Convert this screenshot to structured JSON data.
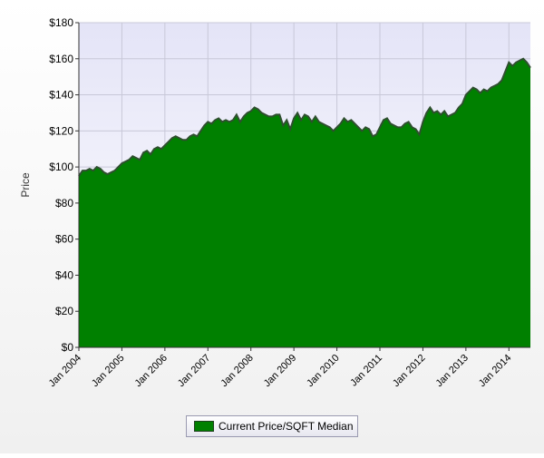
{
  "chart_data": {
    "type": "area",
    "title": "",
    "xlabel": "",
    "ylabel": "Price",
    "ylim": [
      0,
      180
    ],
    "yticks": [
      "$0",
      "$20",
      "$40",
      "$60",
      "$80",
      "$100",
      "$120",
      "$140",
      "$160",
      "$180"
    ],
    "xlim": [
      "2004-01",
      "2014-07"
    ],
    "xticks": [
      "Jan 2004",
      "Jan 2005",
      "Jan 2006",
      "Jan 2007",
      "Jan 2008",
      "Jan 2009",
      "Jan 2010",
      "Jan 2011",
      "Jan 2012",
      "Jan 2013",
      "Jan 2014"
    ],
    "grid": true,
    "legend_position": "bottom-center",
    "series": [
      {
        "name": "Current Price/SQFT Median",
        "color": "#008000",
        "x": [
          "2004-01",
          "2004-02",
          "2004-03",
          "2004-04",
          "2004-05",
          "2004-06",
          "2004-07",
          "2004-08",
          "2004-09",
          "2004-10",
          "2004-11",
          "2004-12",
          "2005-01",
          "2005-02",
          "2005-03",
          "2005-04",
          "2005-05",
          "2005-06",
          "2005-07",
          "2005-08",
          "2005-09",
          "2005-10",
          "2005-11",
          "2005-12",
          "2006-01",
          "2006-02",
          "2006-03",
          "2006-04",
          "2006-05",
          "2006-06",
          "2006-07",
          "2006-08",
          "2006-09",
          "2006-10",
          "2006-11",
          "2006-12",
          "2007-01",
          "2007-02",
          "2007-03",
          "2007-04",
          "2007-05",
          "2007-06",
          "2007-07",
          "2007-08",
          "2007-09",
          "2007-10",
          "2007-11",
          "2007-12",
          "2008-01",
          "2008-02",
          "2008-03",
          "2008-04",
          "2008-05",
          "2008-06",
          "2008-07",
          "2008-08",
          "2008-09",
          "2008-10",
          "2008-11",
          "2008-12",
          "2009-01",
          "2009-02",
          "2009-03",
          "2009-04",
          "2009-05",
          "2009-06",
          "2009-07",
          "2009-08",
          "2009-09",
          "2009-10",
          "2009-11",
          "2009-12",
          "2010-01",
          "2010-02",
          "2010-03",
          "2010-04",
          "2010-05",
          "2010-06",
          "2010-07",
          "2010-08",
          "2010-09",
          "2010-10",
          "2010-11",
          "2010-12",
          "2011-01",
          "2011-02",
          "2011-03",
          "2011-04",
          "2011-05",
          "2011-06",
          "2011-07",
          "2011-08",
          "2011-09",
          "2011-10",
          "2011-11",
          "2011-12",
          "2012-01",
          "2012-02",
          "2012-03",
          "2012-04",
          "2012-05",
          "2012-06",
          "2012-07",
          "2012-08",
          "2012-09",
          "2012-10",
          "2012-11",
          "2012-12",
          "2013-01",
          "2013-02",
          "2013-03",
          "2013-04",
          "2013-05",
          "2013-06",
          "2013-07",
          "2013-08",
          "2013-09",
          "2013-10",
          "2013-11",
          "2013-12",
          "2014-01",
          "2014-02",
          "2014-03",
          "2014-04",
          "2014-05",
          "2014-06",
          "2014-07"
        ],
        "values": [
          95,
          98,
          98,
          99,
          98,
          100,
          99,
          97,
          96,
          97,
          98,
          100,
          102,
          103,
          104,
          106,
          105,
          104,
          108,
          109,
          107,
          110,
          111,
          110,
          112,
          114,
          116,
          117,
          116,
          115,
          115,
          117,
          118,
          117,
          120,
          123,
          125,
          124,
          126,
          127,
          125,
          126,
          125,
          126,
          129,
          125,
          128,
          130,
          131,
          133,
          132,
          130,
          129,
          128,
          128,
          129,
          129,
          123,
          126,
          121,
          127,
          130,
          126,
          129,
          128,
          125,
          128,
          125,
          124,
          123,
          122,
          120,
          122,
          124,
          127,
          125,
          126,
          124,
          122,
          120,
          122,
          121,
          117,
          118,
          122,
          126,
          127,
          124,
          123,
          122,
          122,
          124,
          125,
          122,
          121,
          118,
          125,
          130,
          133,
          130,
          131,
          129,
          131,
          128,
          129,
          130,
          133,
          135,
          140,
          142,
          144,
          143,
          141,
          143,
          142,
          144,
          145,
          146,
          148,
          153,
          158,
          156,
          158,
          159,
          160,
          158,
          155
        ]
      }
    ]
  },
  "legend": {
    "label": "Current Price/SQFT Median"
  }
}
